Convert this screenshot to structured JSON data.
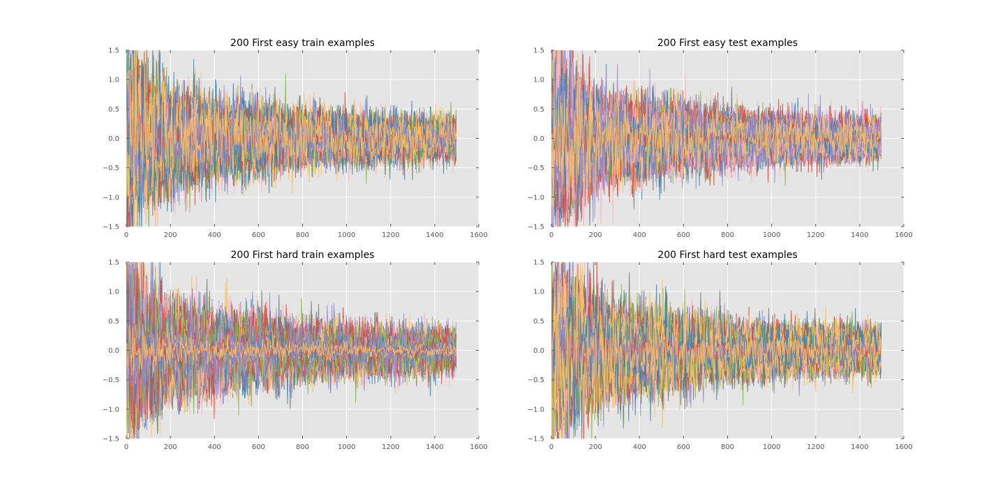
{
  "chart_data": [
    {
      "type": "line",
      "title": "200 First easy train examples",
      "xlabel": "",
      "ylabel": "",
      "xlim": [
        0,
        1600
      ],
      "ylim": [
        -1.5,
        1.5
      ],
      "xticks": [
        0,
        200,
        400,
        600,
        800,
        1000,
        1200,
        1400,
        1600
      ],
      "yticks": [
        -1.5,
        -1.0,
        -0.5,
        0.0,
        0.5,
        1.0,
        1.5
      ],
      "xtick_labels": [
        "0",
        "200",
        "400",
        "600",
        "800",
        "1000",
        "1200",
        "1400",
        "1600"
      ],
      "ytick_labels": [
        "−1.5",
        "−1.0",
        "−0.5",
        "0.0",
        "0.5",
        "1.0",
        "1.5"
      ],
      "grid": true,
      "background": "#e5e5e5",
      "series_count": 200,
      "series_length": 1500,
      "envelope": {
        "x": [
          0,
          100,
          200,
          400,
          600,
          800,
          1000,
          1200,
          1500
        ],
        "amplitude": [
          1.6,
          1.15,
          0.85,
          0.7,
          0.6,
          0.5,
          0.45,
          0.4,
          0.38
        ]
      },
      "seed": 11
    },
    {
      "type": "line",
      "title": "200 First easy test examples",
      "xlabel": "",
      "ylabel": "",
      "xlim": [
        0,
        1600
      ],
      "ylim": [
        -1.5,
        1.5
      ],
      "xticks": [
        0,
        200,
        400,
        600,
        800,
        1000,
        1200,
        1400,
        1600
      ],
      "yticks": [
        -1.5,
        -1.0,
        -0.5,
        0.0,
        0.5,
        1.0,
        1.5
      ],
      "xtick_labels": [
        "0",
        "200",
        "400",
        "600",
        "800",
        "1000",
        "1200",
        "1400",
        "1600"
      ],
      "ytick_labels": [
        "−1.5",
        "−1.0",
        "−0.5",
        "0.0",
        "0.5",
        "1.0",
        "1.5"
      ],
      "grid": true,
      "background": "#e5e5e5",
      "series_count": 200,
      "series_length": 1500,
      "envelope": {
        "x": [
          0,
          100,
          200,
          400,
          600,
          800,
          1000,
          1200,
          1500
        ],
        "amplitude": [
          1.6,
          1.2,
          0.85,
          0.7,
          0.6,
          0.5,
          0.45,
          0.4,
          0.38
        ]
      },
      "seed": 23
    },
    {
      "type": "line",
      "title": "200 First hard train examples",
      "xlabel": "",
      "ylabel": "",
      "xlim": [
        0,
        1600
      ],
      "ylim": [
        -1.5,
        1.5
      ],
      "xticks": [
        0,
        200,
        400,
        600,
        800,
        1000,
        1200,
        1400,
        1600
      ],
      "yticks": [
        -1.5,
        -1.0,
        -0.5,
        0.0,
        0.5,
        1.0,
        1.5
      ],
      "xtick_labels": [
        "0",
        "200",
        "400",
        "600",
        "800",
        "1000",
        "1200",
        "1400",
        "1600"
      ],
      "ytick_labels": [
        "−1.5",
        "−1.0",
        "−0.5",
        "0.0",
        "0.5",
        "1.0",
        "1.5"
      ],
      "grid": true,
      "background": "#e5e5e5",
      "series_count": 200,
      "series_length": 1500,
      "envelope": {
        "x": [
          0,
          100,
          200,
          400,
          600,
          800,
          1000,
          1200,
          1500
        ],
        "amplitude": [
          1.6,
          1.15,
          0.85,
          0.7,
          0.6,
          0.5,
          0.45,
          0.42,
          0.38
        ]
      },
      "seed": 37
    },
    {
      "type": "line",
      "title": "200 First hard test examples",
      "xlabel": "",
      "ylabel": "",
      "xlim": [
        0,
        1600
      ],
      "ylim": [
        -1.5,
        1.5
      ],
      "xticks": [
        0,
        200,
        400,
        600,
        800,
        1000,
        1200,
        1400,
        1600
      ],
      "yticks": [
        -1.5,
        -1.0,
        -0.5,
        0.0,
        0.5,
        1.0,
        1.5
      ],
      "xtick_labels": [
        "0",
        "200",
        "400",
        "600",
        "800",
        "1000",
        "1200",
        "1400",
        "1600"
      ],
      "ytick_labels": [
        "−1.5",
        "−1.0",
        "−0.5",
        "0.0",
        "0.5",
        "1.0",
        "1.5"
      ],
      "grid": true,
      "background": "#e5e5e5",
      "series_count": 200,
      "series_length": 1500,
      "envelope": {
        "x": [
          0,
          100,
          200,
          400,
          600,
          800,
          1000,
          1200,
          1500
        ],
        "amplitude": [
          1.6,
          1.2,
          0.9,
          0.7,
          0.6,
          0.5,
          0.45,
          0.42,
          0.38
        ]
      },
      "seed": 53
    }
  ],
  "colors": {
    "series_cycle": [
      "#348abd",
      "#e24a33",
      "#988ed5",
      "#fbc15e",
      "#8eba42",
      "#ffb5b8",
      "#777777"
    ],
    "grid": "#ffffff",
    "axes_background": "#e5e5e5",
    "tick_label": "#555555"
  }
}
